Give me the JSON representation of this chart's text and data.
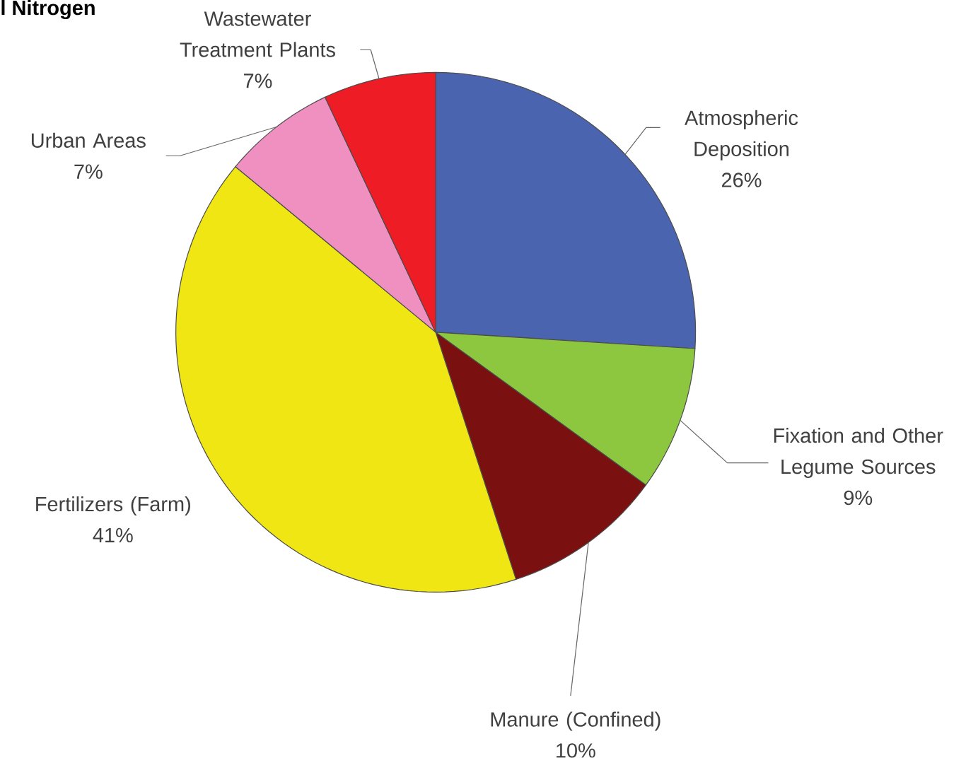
{
  "chart_data": {
    "type": "pie",
    "title": "l Nitrogen",
    "categories": [
      "Atmospheric Deposition",
      "Fixation and Other Legume Sources",
      "Manure (Confined)",
      "Fertilizers (Farm)",
      "Urban Areas",
      "Wastewater Treatment Plants"
    ],
    "values": [
      26,
      9,
      10,
      41,
      7,
      7
    ],
    "value_labels": [
      "26%",
      "9%",
      "10%",
      "41%",
      "7%",
      "7%"
    ],
    "colors": [
      "#4a64b0",
      "#8dc63f",
      "#7a1010",
      "#f0e614",
      "#f090c0",
      "#ee1c24"
    ]
  }
}
